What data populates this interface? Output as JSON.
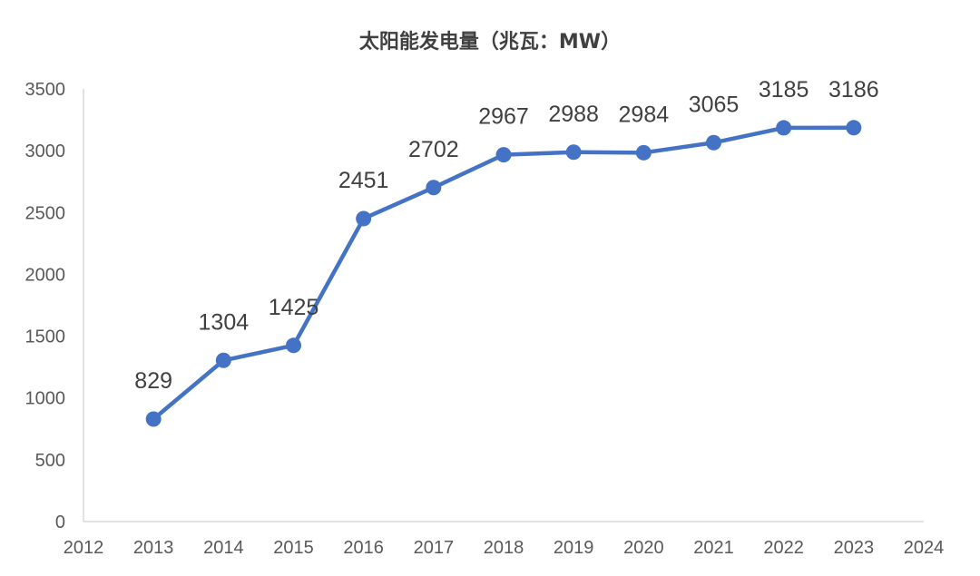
{
  "chart_data": {
    "type": "line",
    "title": "太阳能发电量（兆瓦：MW）",
    "x_ticks": [
      2012,
      2013,
      2014,
      2015,
      2016,
      2017,
      2018,
      2019,
      2020,
      2021,
      2022,
      2023,
      2024
    ],
    "xlim": [
      2012,
      2024
    ],
    "ylim": [
      0,
      3500
    ],
    "y_ticks": [
      0,
      500,
      1000,
      1500,
      2000,
      2500,
      3000,
      3500
    ],
    "series": [
      {
        "x": [
          2013,
          2014,
          2015,
          2016,
          2017,
          2018,
          2019,
          2020,
          2021,
          2022,
          2023
        ],
        "values": [
          829,
          1304,
          1425,
          2451,
          2702,
          2967,
          2988,
          2984,
          3065,
          3185,
          3186
        ],
        "color": "#4472C4"
      }
    ],
    "data_labels": true,
    "grid": false,
    "legend": "none"
  }
}
